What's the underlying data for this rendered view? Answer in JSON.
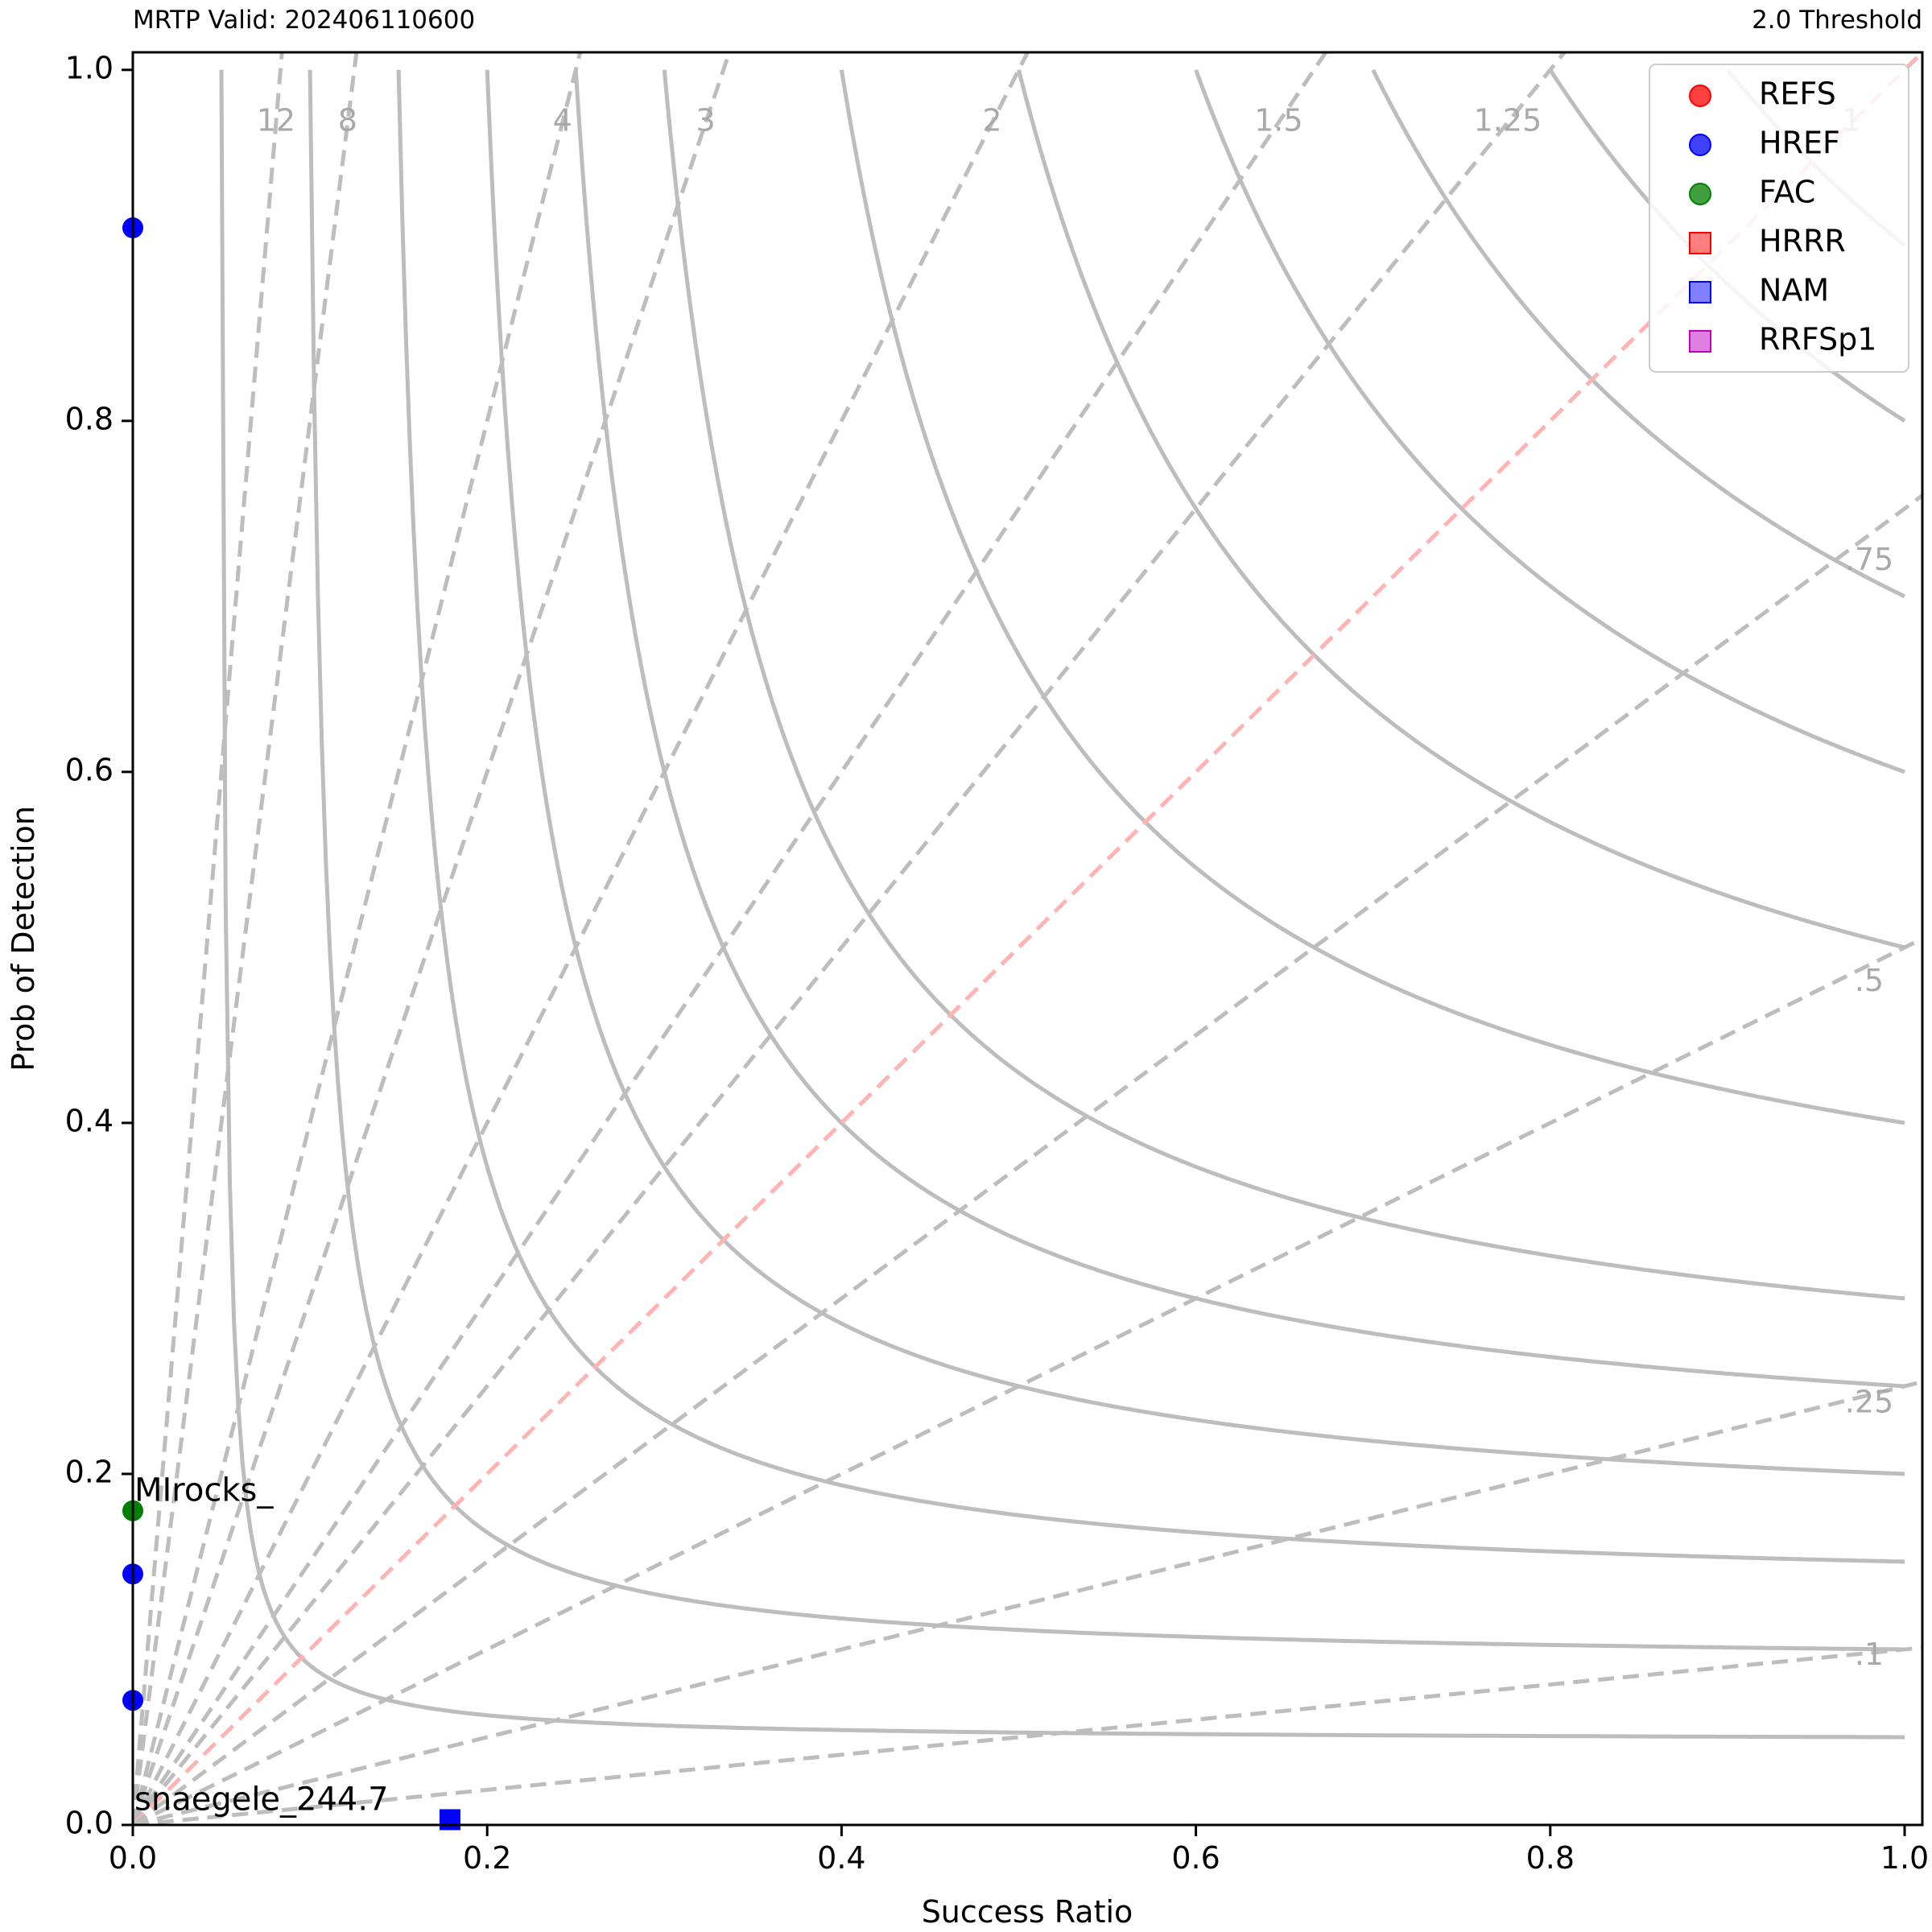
{
  "header": {
    "left": "MRTP Valid: 202406110600",
    "right": "2.0 Threshold"
  },
  "chart_data": {
    "type": "scatter",
    "subtype": "performance-diagram",
    "xlabel": "Success Ratio",
    "ylabel": "Prob of Detection",
    "xlim": [
      0.0,
      1.01
    ],
    "ylim": [
      0.0,
      1.01
    ],
    "xticks": [
      "0.0",
      "0.2",
      "0.4",
      "0.6",
      "0.8",
      "1.0"
    ],
    "yticks": [
      "0.0",
      "0.2",
      "0.4",
      "0.6",
      "0.8",
      "1.0"
    ],
    "grid": false,
    "legend_position": "top-right",
    "bias_lines": [
      {
        "bias": 12,
        "label": "12"
      },
      {
        "bias": 8,
        "label": "8"
      },
      {
        "bias": 4,
        "label": "4"
      },
      {
        "bias": 3,
        "label": "3"
      },
      {
        "bias": 2,
        "label": "2"
      },
      {
        "bias": 1.5,
        "label": "1.5"
      },
      {
        "bias": 1.25,
        "label": "1.25"
      },
      {
        "bias": 1,
        "label": "1",
        "highlight": true
      },
      {
        "bias": 0.75,
        "label": ".75"
      },
      {
        "bias": 0.5,
        "label": ".5"
      },
      {
        "bias": 0.25,
        "label": ".25"
      },
      {
        "bias": 0.1,
        "label": ".1"
      }
    ],
    "csi_levels": [
      0.05,
      0.1,
      0.15,
      0.2,
      0.25,
      0.3,
      0.4,
      0.5,
      0.6,
      0.7,
      0.8,
      0.9
    ],
    "series": [
      {
        "name": "REFS",
        "marker": "circle",
        "color": "#ff0000",
        "points": []
      },
      {
        "name": "HREF",
        "marker": "circle",
        "color": "#0000ff",
        "points": [
          {
            "x": 0.0,
            "y": 0.91
          },
          {
            "x": 0.0,
            "y": 0.143
          },
          {
            "x": 0.0,
            "y": 0.071
          }
        ]
      },
      {
        "name": "FAC",
        "marker": "circle",
        "color": "#008000",
        "points": [
          {
            "x": 0.0,
            "y": 0.179
          }
        ]
      },
      {
        "name": "HRRR",
        "marker": "square",
        "color": "#ff0000",
        "points": []
      },
      {
        "name": "NAM",
        "marker": "square",
        "color": "#0000ff",
        "points": [
          {
            "x": 0.179,
            "y": 0.003
          }
        ]
      },
      {
        "name": "RRFSp1",
        "marker": "square",
        "color": "#bf00bf",
        "points": []
      }
    ],
    "annotations": [
      {
        "text": "MIrocks_",
        "x": 0.0,
        "y": 0.179
      },
      {
        "text": "snaegele_244.7",
        "x": 0.0,
        "y": 0.003
      }
    ]
  }
}
